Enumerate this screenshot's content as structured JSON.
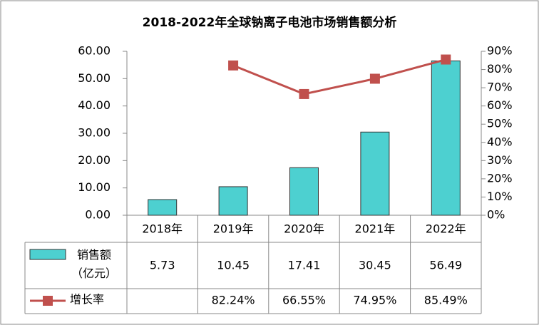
{
  "chart_data": {
    "type": "bar",
    "title": "2018-2022年全球钠离子电池市场销售额分析",
    "categories": [
      "2018年",
      "2019年",
      "2020年",
      "2021年",
      "2022年"
    ],
    "series": [
      {
        "name": "销售额（亿元）",
        "type": "bar",
        "color": "#4dd0d0",
        "values": [
          5.73,
          10.45,
          17.41,
          30.45,
          56.49
        ]
      },
      {
        "name": "增长率",
        "type": "line",
        "axis": "y2",
        "color": "#c0504d",
        "values": [
          null,
          82.24,
          66.55,
          74.95,
          85.49
        ],
        "value_labels": [
          null,
          "82.24%",
          "66.55%",
          "74.95%",
          "85.49%"
        ]
      }
    ],
    "ylim": [
      0,
      60
    ],
    "yticks": [
      {
        "value": 0,
        "label": "0.00"
      },
      {
        "value": 10,
        "label": "10.00"
      },
      {
        "value": 20,
        "label": "20.00"
      },
      {
        "value": 30,
        "label": "30.00"
      },
      {
        "value": 40,
        "label": "40.00"
      },
      {
        "value": 50,
        "label": "50.00"
      },
      {
        "value": 60,
        "label": "60.00"
      }
    ],
    "y2lim": [
      0,
      90
    ],
    "y2ticks": [
      {
        "value": 0,
        "label": "0%"
      },
      {
        "value": 10,
        "label": "10%"
      },
      {
        "value": 20,
        "label": "20%"
      },
      {
        "value": 30,
        "label": "30%"
      },
      {
        "value": 40,
        "label": "40%"
      },
      {
        "value": 50,
        "label": "50%"
      },
      {
        "value": 60,
        "label": "60%"
      },
      {
        "value": 70,
        "label": "70%"
      },
      {
        "value": 80,
        "label": "80%"
      },
      {
        "value": 90,
        "label": "90%"
      }
    ]
  }
}
